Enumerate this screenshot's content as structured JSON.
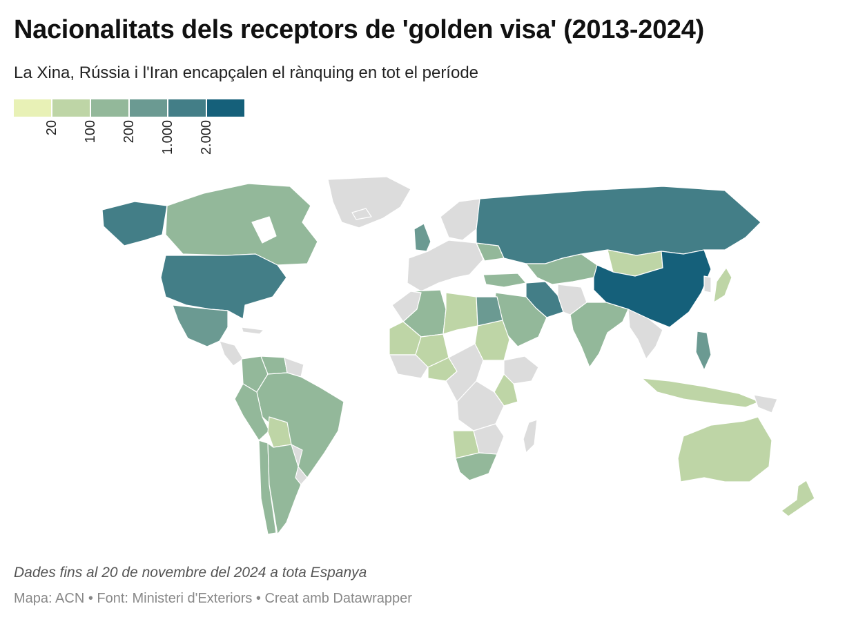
{
  "header": {
    "title": "Nacionalitats dels receptors de 'golden visa' (2013-2024)",
    "subtitle": "La Xina, Rússia i l'Iran encapçalen el rànquing en tot el període"
  },
  "legend": {
    "colors": [
      "#e8f1b6",
      "#bed5a6",
      "#93b89a",
      "#6b9a92",
      "#437e87",
      "#15607a"
    ],
    "no_data_color": "#dcdcdc",
    "thresholds": [
      "20",
      "100",
      "200",
      "1.000",
      "2.000"
    ]
  },
  "map": {
    "type": "choropleth",
    "region": "world",
    "categories": [
      {
        "bin": 5,
        "countries": [
          "China"
        ]
      },
      {
        "bin": 4,
        "countries": [
          "Russia",
          "United States",
          "Iran"
        ]
      },
      {
        "bin": 3,
        "countries": [
          "Mexico",
          "United Kingdom",
          "Egypt",
          "Philippines"
        ]
      },
      {
        "bin": 2,
        "countries": [
          "Canada",
          "Brazil",
          "Argentina",
          "Colombia",
          "Venezuela",
          "Peru",
          "Chile",
          "India",
          "Kazakhstan",
          "Saudi Arabia",
          "Ukraine",
          "Turkey",
          "South Africa",
          "Algeria"
        ]
      },
      {
        "bin": 1,
        "countries": [
          "Australia",
          "Mongolia",
          "Bolivia",
          "Libya",
          "Sudan",
          "Nigeria",
          "Kenya",
          "Indonesia",
          "Japan",
          "Mali",
          "Mauritania",
          "Angola",
          "New Zealand"
        ]
      }
    ]
  },
  "footer": {
    "notes": "Dades fins al 20 de novembre del 2024 a tota Espanya",
    "credits": "Mapa: ACN • Font: Ministeri d'Exteriors • Creat amb Datawrapper"
  }
}
